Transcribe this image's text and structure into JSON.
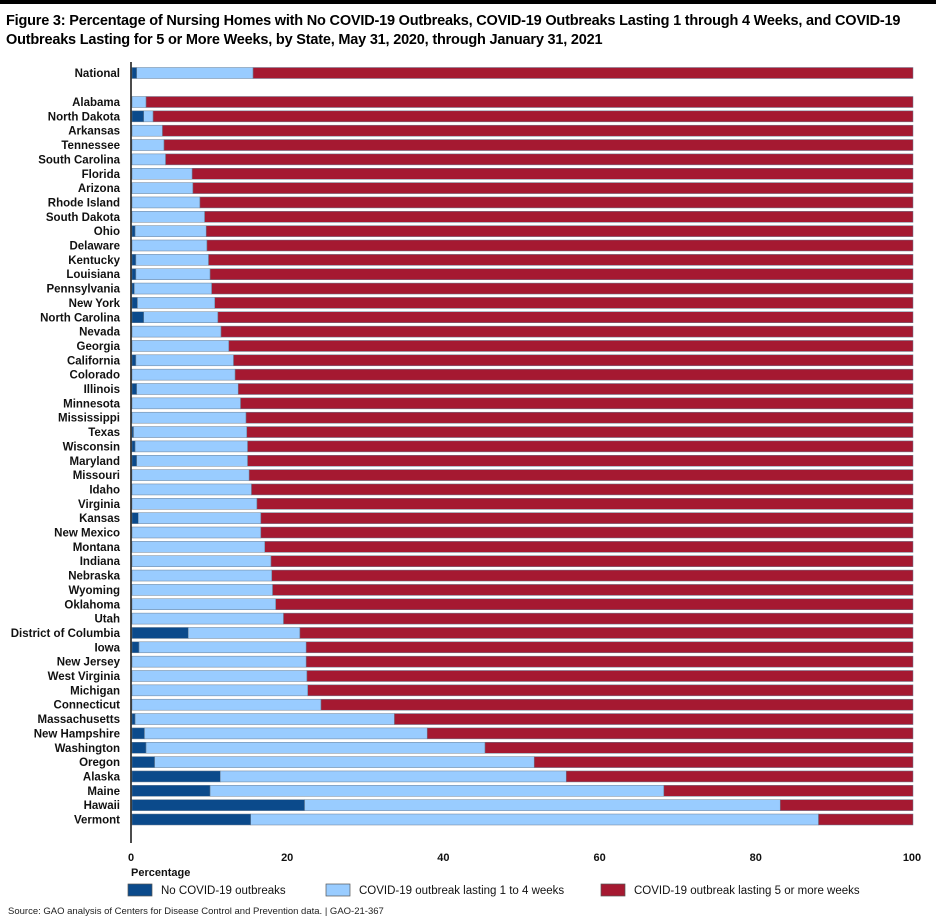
{
  "chart_data": {
    "type": "bar",
    "orientation": "horizontal",
    "stacked": true,
    "title": "Figure 3: Percentage of Nursing Homes with No COVID-19 Outbreaks, COVID-19 Outbreaks Lasting 1 through 4 Weeks, and COVID-19 Outbreaks Lasting for 5 or More Weeks, by State, May 31, 2020, through January 31, 2021",
    "xlabel": "Percentage",
    "xlim": [
      0,
      100
    ],
    "xticks": [
      "0",
      "20",
      "40",
      "60",
      "80",
      "100"
    ],
    "grid": false,
    "legend_position": "bottom",
    "source": "Source: GAO analysis of Centers for Disease Control and Prevention data.  |  GAO-21-367",
    "categories": [
      "National",
      "Alabama",
      "North Dakota",
      "Arkansas",
      "Tennessee",
      "South Carolina",
      "Florida",
      "Arizona",
      "Rhode Island",
      "South Dakota",
      "Ohio",
      "Delaware",
      "Kentucky",
      "Louisiana",
      "Pennsylvania",
      "New York",
      "North Carolina",
      "Nevada",
      "Georgia",
      "California",
      "Colorado",
      "Illinois",
      "Minnesota",
      "Mississippi",
      "Texas",
      "Wisconsin",
      "Maryland",
      "Missouri",
      "Idaho",
      "Virginia",
      "Kansas",
      "New Mexico",
      "Montana",
      "Indiana",
      "Nebraska",
      "Wyoming",
      "Oklahoma",
      "Utah",
      "District of Columbia",
      "Iowa",
      "New Jersey",
      "West Virginia",
      "Michigan",
      "Connecticut",
      "Massachusetts",
      "New Hampshire",
      "Washington",
      "Oregon",
      "Alaska",
      "Maine",
      "Hawaii",
      "Vermont"
    ],
    "series": [
      {
        "name": "No COVID-19 outbreaks",
        "color": "#0b4a8b",
        "values": [
          0.6,
          0,
          1.5,
          0,
          0,
          0,
          0,
          0,
          0,
          0,
          0.4,
          0,
          0.5,
          0.5,
          0.3,
          0.7,
          1.5,
          0,
          0,
          0.5,
          0,
          0.6,
          0,
          0,
          0.2,
          0.4,
          0.6,
          0,
          0,
          0,
          0.8,
          0,
          0,
          0,
          0,
          0,
          0,
          0,
          7.2,
          0.9,
          0,
          0,
          0,
          0,
          0.4,
          1.6,
          1.8,
          2.9,
          11.3,
          10.0,
          22.1,
          15.2
        ]
      },
      {
        "name": "COVID-19 outbreak lasting 1 to 4 weeks",
        "color": "#99ccff",
        "values": [
          14.9,
          1.8,
          1.2,
          3.9,
          4.1,
          4.3,
          7.7,
          7.8,
          8.7,
          9.3,
          9.1,
          9.6,
          9.3,
          9.5,
          9.9,
          9.9,
          9.5,
          11.4,
          12.4,
          12.5,
          13.2,
          13.0,
          13.9,
          14.6,
          14.5,
          14.4,
          14.2,
          15.0,
          15.3,
          16.0,
          15.7,
          16.5,
          17.0,
          17.8,
          17.9,
          18.0,
          18.4,
          19.4,
          14.3,
          21.4,
          22.3,
          22.4,
          22.5,
          24.2,
          33.2,
          36.2,
          43.4,
          48.6,
          44.3,
          58.1,
          60.9,
          72.7
        ]
      },
      {
        "name": "COVID-19 outbreak lasting 5 or more weeks",
        "color": "#a51931",
        "values": [
          84.5,
          98.2,
          97.3,
          96.1,
          95.9,
          95.7,
          92.3,
          92.2,
          91.3,
          90.7,
          90.5,
          90.4,
          90.2,
          90.0,
          89.8,
          89.4,
          89.0,
          88.6,
          87.6,
          87.0,
          86.8,
          86.4,
          86.1,
          85.4,
          85.3,
          85.2,
          85.2,
          85.0,
          84.7,
          84.0,
          83.5,
          83.5,
          83.0,
          82.2,
          82.1,
          82.0,
          81.6,
          80.6,
          78.5,
          77.7,
          77.7,
          77.6,
          77.5,
          75.8,
          66.4,
          62.2,
          54.8,
          48.5,
          44.4,
          31.9,
          17.0,
          12.1
        ]
      }
    ]
  }
}
